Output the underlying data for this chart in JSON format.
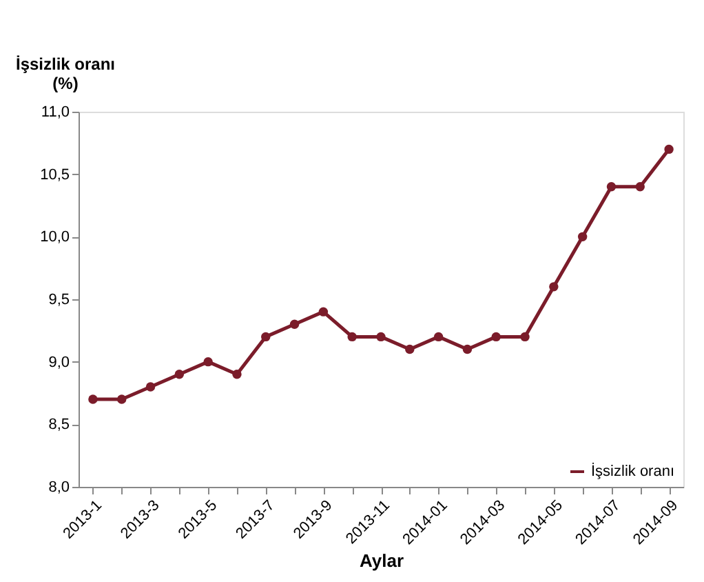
{
  "chart_data": {
    "type": "line",
    "xlabel": "Aylar",
    "ylabel": "İşsizlik oranı\n(%)",
    "categories": [
      "2013-1",
      null,
      "2013-3",
      null,
      "2013-5",
      null,
      "2013-7",
      null,
      "2013-9",
      null,
      "2013-11",
      null,
      "2014-01",
      null,
      "2014-03",
      null,
      "2014-05",
      null,
      "2014-07",
      null,
      "2014-09"
    ],
    "series": [
      {
        "name": "İşsizlik oranı",
        "color": "#7b1c2a",
        "values": [
          8.7,
          8.7,
          8.8,
          8.9,
          9.0,
          8.9,
          9.2,
          9.3,
          9.4,
          9.2,
          9.2,
          9.1,
          9.2,
          9.1,
          9.2,
          9.2,
          9.6,
          10.0,
          10.4,
          10.4,
          10.7
        ]
      }
    ],
    "ylim": [
      8.0,
      11.0
    ],
    "yticks": [
      {
        "value": 8.0,
        "label": "8,0"
      },
      {
        "value": 8.5,
        "label": "8,5"
      },
      {
        "value": 9.0,
        "label": "9,0"
      },
      {
        "value": 9.5,
        "label": "9,5"
      },
      {
        "value": 10.0,
        "label": "10,0"
      },
      {
        "value": 10.5,
        "label": "10,5"
      },
      {
        "value": 11.0,
        "label": "11,0"
      }
    ],
    "marker": "circle",
    "line_style": "solid",
    "legend": "bottom right",
    "grid": false
  }
}
